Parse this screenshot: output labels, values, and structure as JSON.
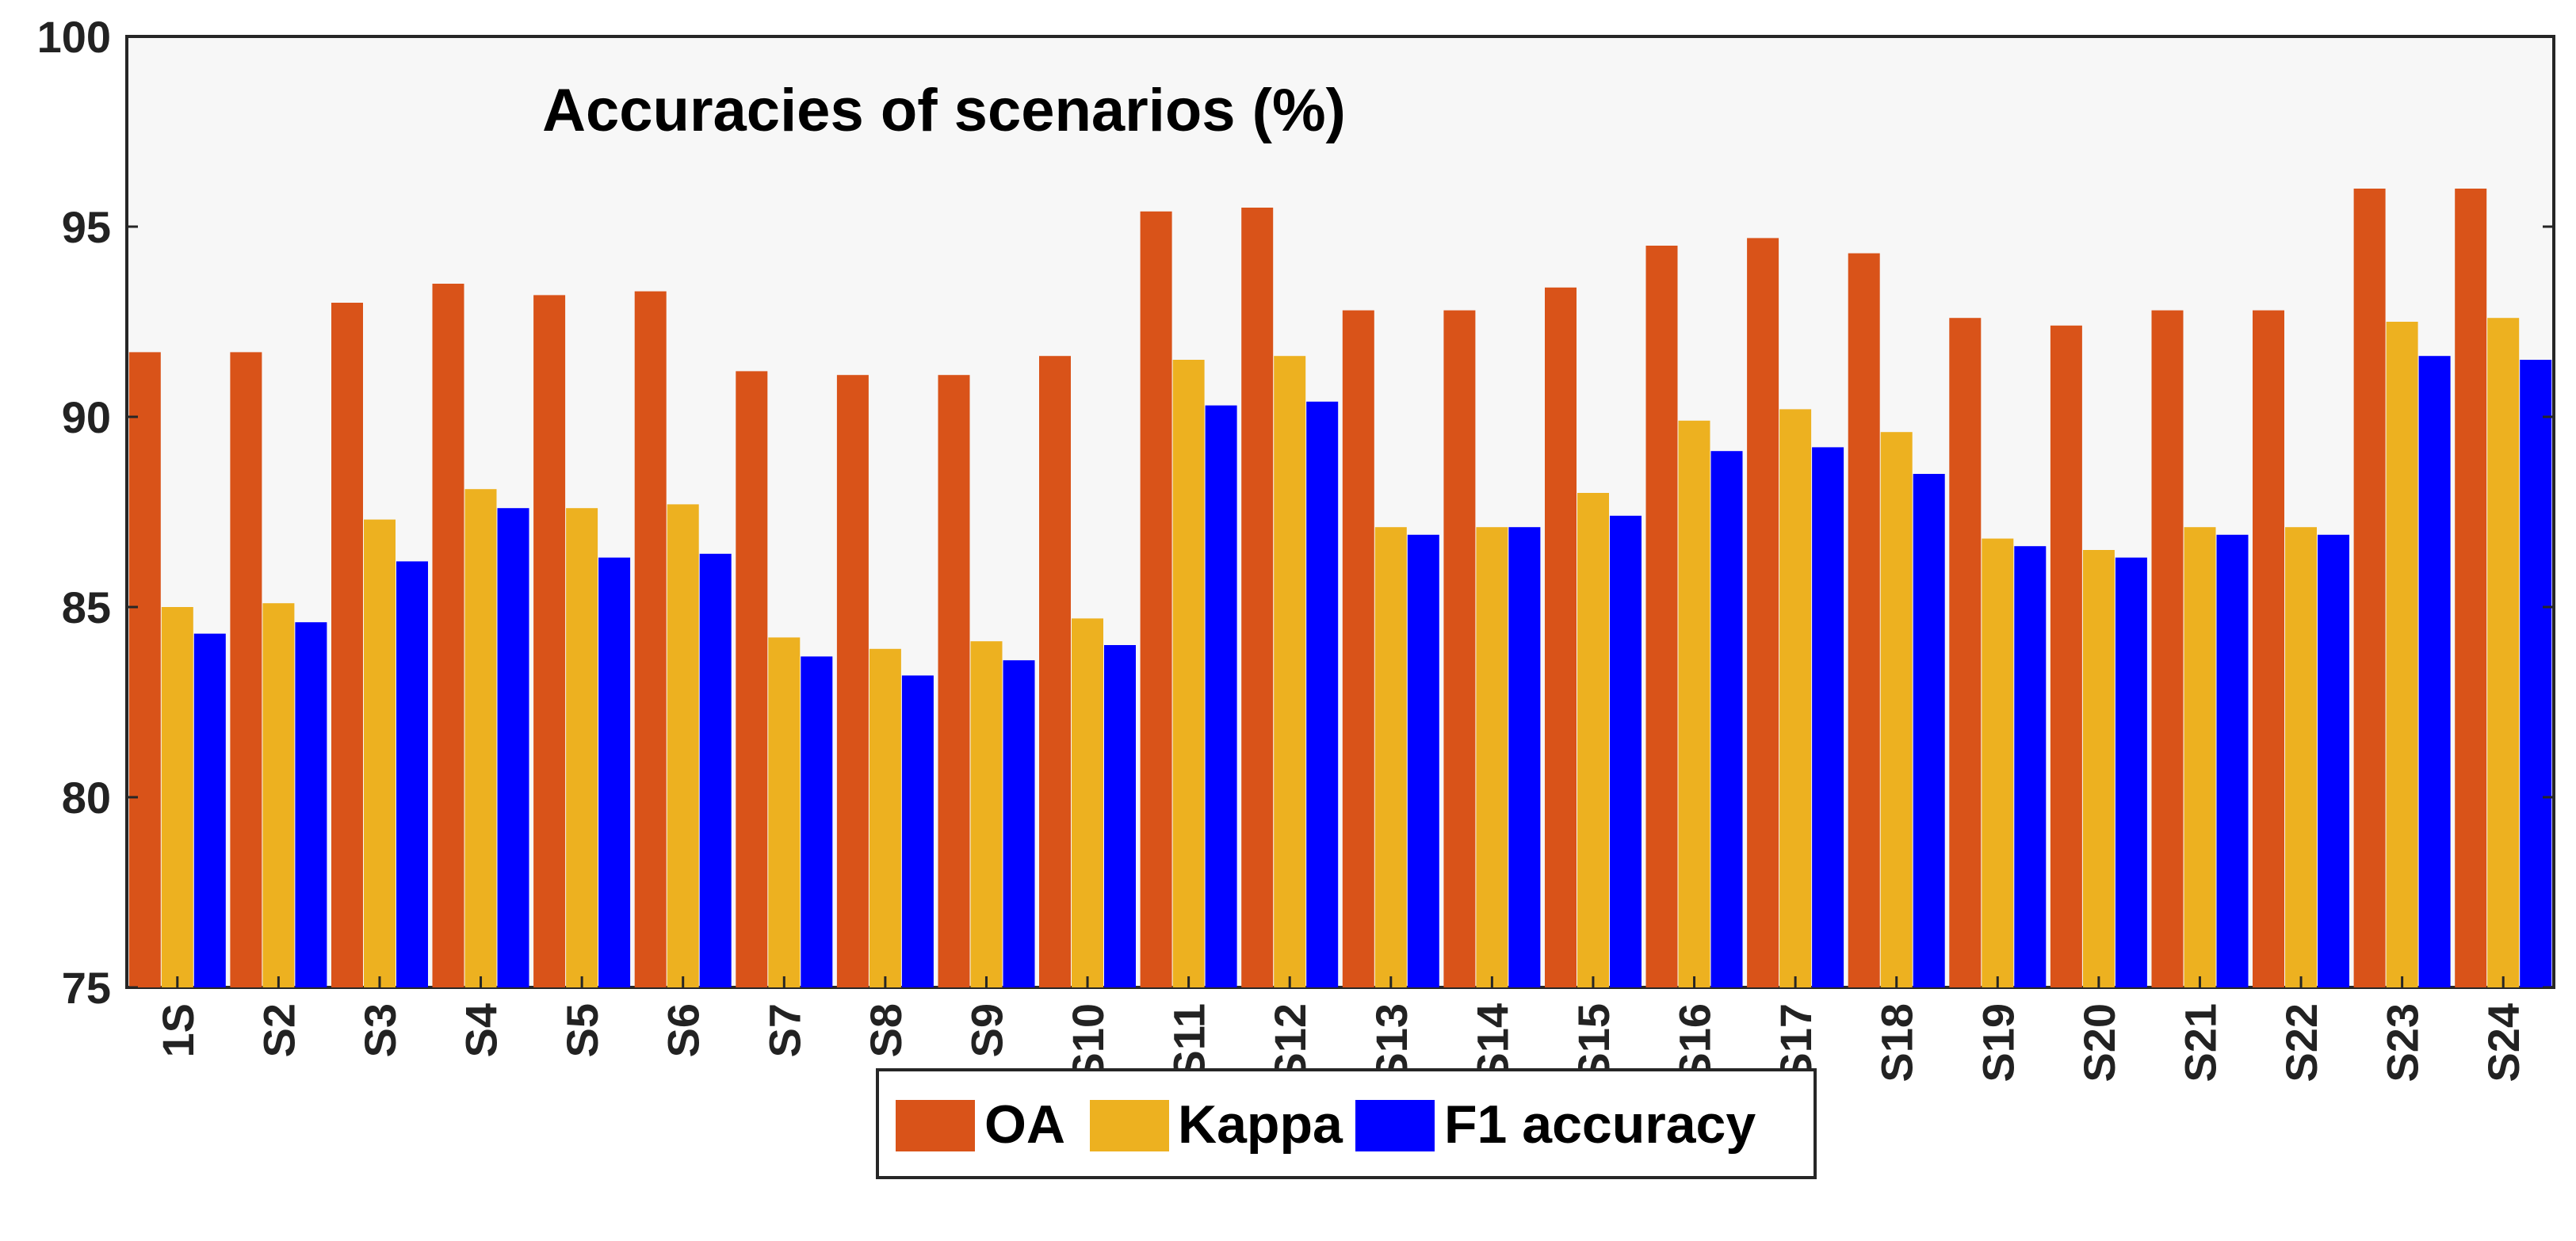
{
  "chart_data": {
    "type": "bar",
    "title": "Accuracies of scenarios (%)",
    "xlabel": "",
    "ylabel": "",
    "ylim": [
      75,
      100
    ],
    "yticks": [
      75,
      80,
      85,
      90,
      95,
      100
    ],
    "grid": false,
    "legend_position": "bottom-center",
    "categories": [
      "1S",
      "S2",
      "S3",
      "S4",
      "S5",
      "S6",
      "S7",
      "S8",
      "S9",
      "S10",
      "S11",
      "S12",
      "S13",
      "S14",
      "S15",
      "S16",
      "S17",
      "S18",
      "S19",
      "S20",
      "S21",
      "S22",
      "S23",
      "S24"
    ],
    "series": [
      {
        "name": "OA",
        "color": "#D95319",
        "values": [
          91.7,
          91.7,
          93.0,
          93.5,
          93.2,
          93.3,
          91.2,
          91.1,
          91.1,
          91.6,
          95.4,
          95.5,
          92.8,
          92.8,
          93.4,
          94.5,
          94.7,
          94.3,
          92.6,
          92.4,
          92.8,
          92.8,
          96.0,
          96.0
        ]
      },
      {
        "name": "Kappa",
        "color": "#EDB120",
        "values": [
          85.0,
          85.1,
          87.3,
          88.1,
          87.6,
          87.7,
          84.2,
          83.9,
          84.1,
          84.7,
          91.5,
          91.6,
          87.1,
          87.1,
          88.0,
          89.9,
          90.2,
          89.6,
          86.8,
          86.5,
          87.1,
          87.1,
          92.5,
          92.6
        ]
      },
      {
        "name": "F1 accuracy",
        "color": "#0000FF",
        "values": [
          84.3,
          84.6,
          86.2,
          87.6,
          86.3,
          86.4,
          83.7,
          83.2,
          83.6,
          84.0,
          90.3,
          90.4,
          86.9,
          87.1,
          87.4,
          89.1,
          89.2,
          88.5,
          86.6,
          86.3,
          86.9,
          86.9,
          91.6,
          91.5
        ]
      }
    ]
  }
}
